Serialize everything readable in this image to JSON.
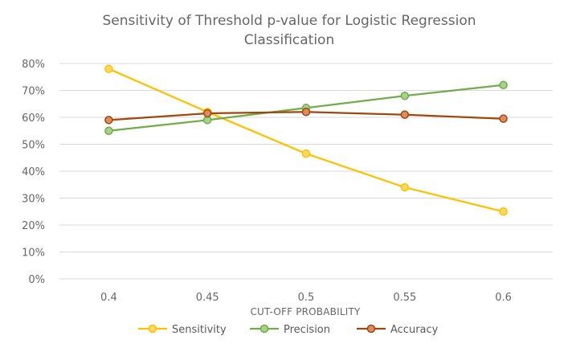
{
  "chart_data": {
    "type": "line",
    "title_lines": [
      "Sensitivity of Threshold p-value for Logistic Regression",
      "Classification"
    ],
    "xlabel": "CUT-OFF PROBABILITY",
    "ylabel": "",
    "categories": [
      "0.4",
      "0.45",
      "0.5",
      "0.55",
      "0.6"
    ],
    "y_ticks": [
      "0%",
      "10%",
      "20%",
      "30%",
      "40%",
      "50%",
      "60%",
      "70%",
      "80%"
    ],
    "ylim": [
      0,
      0.8
    ],
    "grid": true,
    "legend_position": "bottom",
    "series": [
      {
        "name": "Sensitivity",
        "color": "#FFC000",
        "marker_fill": "#FFD966",
        "values": [
          0.78,
          0.62,
          0.465,
          0.34,
          0.25
        ]
      },
      {
        "name": "Precision",
        "color": "#70AD47",
        "marker_fill": "#A9D18E",
        "values": [
          0.55,
          0.59,
          0.635,
          0.68,
          0.72
        ]
      },
      {
        "name": "Accuracy",
        "color": "#9E480E",
        "marker_fill": "#E08B5E",
        "values": [
          0.59,
          0.615,
          0.62,
          0.61,
          0.595
        ]
      }
    ]
  }
}
